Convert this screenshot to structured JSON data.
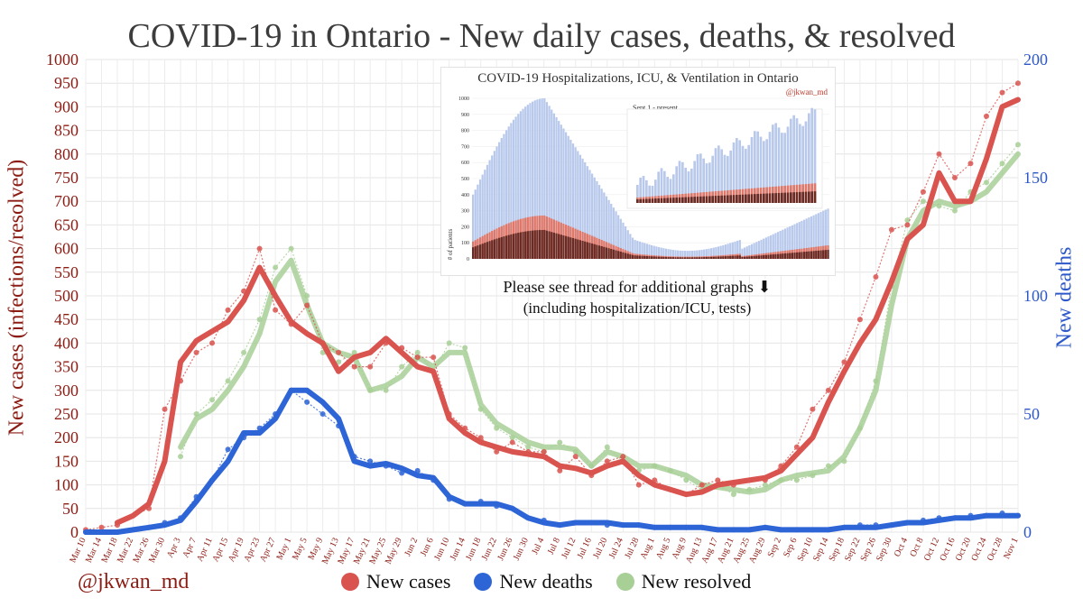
{
  "chart_data": {
    "type": "line",
    "title": "COVID-19 in Ontario - New daily cases, deaths, & resolved",
    "ylabel": "New cases (infections/resolved)",
    "ylabel_right": "New deaths",
    "ylim": [
      0,
      1000
    ],
    "ylim_right": [
      0,
      200
    ],
    "grid": true,
    "legend_position": "bottom",
    "credit": "@jkwan_md",
    "yticks": [
      0,
      50,
      100,
      150,
      200,
      250,
      300,
      350,
      400,
      450,
      500,
      550,
      600,
      650,
      700,
      750,
      800,
      850,
      900,
      950,
      1000
    ],
    "yticks_right": [
      0,
      50,
      100,
      150,
      200
    ],
    "x_tick_labels": [
      "Mar 10",
      "Mar 14",
      "Mar 18",
      "Mar 22",
      "Mar 26",
      "Mar 30",
      "Apr 3",
      "Apr 7",
      "Apr 11",
      "Apr 15",
      "Apr 19",
      "Apr 23",
      "Apr 27",
      "May 1",
      "May 5",
      "May 9",
      "May 13",
      "May 17",
      "May 21",
      "May 25",
      "May 29",
      "Jun 2",
      "Jun 6",
      "Jun 10",
      "Jun 14",
      "Jun 18",
      "Jun 22",
      "Jun 26",
      "Jun 30",
      "Jul 4",
      "Jul 8",
      "Jul 12",
      "Jul 16",
      "Jul 20",
      "Jul 24",
      "Jul 28",
      "Aug 1",
      "Aug 5",
      "Aug 9",
      "Aug 13",
      "Aug 17",
      "Aug 21",
      "Aug 25",
      "Aug 29",
      "Sep 2",
      "Sep 6",
      "Sep 10",
      "Sep 14",
      "Sep 18",
      "Sep 22",
      "Sep 26",
      "Sep 30",
      "Oct 4",
      "Oct 8",
      "Oct 12",
      "Oct 16",
      "Oct 20",
      "Oct 24",
      "Oct 28",
      "Nov 1"
    ],
    "series": [
      {
        "name": "New cases",
        "color": "#d9534f",
        "axis": "left",
        "style": "7-day average line with daily points",
        "x": [
          "Mar 10",
          "Mar 14",
          "Mar 18",
          "Mar 22",
          "Mar 26",
          "Mar 30",
          "Apr 3",
          "Apr 7",
          "Apr 11",
          "Apr 15",
          "Apr 19",
          "Apr 23",
          "Apr 27",
          "May 1",
          "May 5",
          "May 9",
          "May 13",
          "May 17",
          "May 21",
          "May 25",
          "May 29",
          "Jun 2",
          "Jun 6",
          "Jun 10",
          "Jun 14",
          "Jun 18",
          "Jun 22",
          "Jun 26",
          "Jun 30",
          "Jul 4",
          "Jul 8",
          "Jul 12",
          "Jul 16",
          "Jul 20",
          "Jul 24",
          "Jul 28",
          "Aug 1",
          "Aug 5",
          "Aug 9",
          "Aug 13",
          "Aug 17",
          "Aug 21",
          "Aug 25",
          "Aug 29",
          "Sep 2",
          "Sep 6",
          "Sep 10",
          "Sep 14",
          "Sep 18",
          "Sep 22",
          "Sep 26",
          "Sep 30",
          "Oct 4",
          "Oct 8",
          "Oct 12",
          "Oct 16",
          "Oct 20",
          "Oct 24",
          "Oct 28",
          "Nov 1"
        ],
        "values": [
          null,
          null,
          20,
          35,
          60,
          150,
          360,
          405,
          425,
          445,
          490,
          560,
          500,
          445,
          420,
          400,
          340,
          370,
          380,
          410,
          380,
          350,
          340,
          240,
          210,
          190,
          180,
          170,
          165,
          160,
          140,
          135,
          125,
          140,
          150,
          120,
          100,
          90,
          80,
          85,
          100,
          105,
          110,
          115,
          130,
          165,
          200,
          275,
          340,
          400,
          450,
          530,
          620,
          650,
          760,
          700,
          700,
          790,
          900,
          915
        ],
        "points": [
          5,
          10,
          15,
          35,
          50,
          260,
          320,
          380,
          400,
          470,
          510,
          600,
          470,
          440,
          480,
          400,
          380,
          350,
          350,
          400,
          390,
          370,
          370,
          250,
          220,
          200,
          170,
          190,
          170,
          170,
          130,
          160,
          120,
          150,
          160,
          100,
          110,
          90,
          80,
          100,
          110,
          100,
          110,
          110,
          140,
          180,
          260,
          300,
          360,
          450,
          540,
          640,
          650,
          720,
          800,
          750,
          780,
          880,
          930,
          950
        ]
      },
      {
        "name": "New deaths",
        "color": "#2d64d6",
        "axis": "right",
        "style": "7-day average line with daily points",
        "x": [
          "Mar 10",
          "Mar 14",
          "Mar 18",
          "Mar 22",
          "Mar 26",
          "Mar 30",
          "Apr 3",
          "Apr 7",
          "Apr 11",
          "Apr 15",
          "Apr 19",
          "Apr 23",
          "Apr 27",
          "May 1",
          "May 5",
          "May 9",
          "May 13",
          "May 17",
          "May 21",
          "May 25",
          "May 29",
          "Jun 2",
          "Jun 6",
          "Jun 10",
          "Jun 14",
          "Jun 18",
          "Jun 22",
          "Jun 26",
          "Jun 30",
          "Jul 4",
          "Jul 8",
          "Jul 12",
          "Jul 16",
          "Jul 20",
          "Jul 24",
          "Jul 28",
          "Aug 1",
          "Aug 5",
          "Aug 9",
          "Aug 13",
          "Aug 17",
          "Aug 21",
          "Aug 25",
          "Aug 29",
          "Sep 2",
          "Sep 6",
          "Sep 10",
          "Sep 14",
          "Sep 18",
          "Sep 22",
          "Sep 26",
          "Sep 30",
          "Oct 4",
          "Oct 8",
          "Oct 12",
          "Oct 16",
          "Oct 20",
          "Oct 24",
          "Oct 28",
          "Nov 1"
        ],
        "values": [
          0,
          0,
          0,
          1,
          2,
          3,
          5,
          13,
          22,
          30,
          42,
          42,
          48,
          60,
          60,
          55,
          48,
          30,
          28,
          29,
          27,
          24,
          23,
          15,
          12,
          12,
          12,
          10,
          6,
          4,
          3,
          4,
          4,
          4,
          3,
          3,
          2,
          2,
          2,
          2,
          1,
          1,
          1,
          2,
          1,
          1,
          1,
          1,
          2,
          2,
          2,
          3,
          4,
          4,
          5,
          6,
          6,
          7,
          7,
          7
        ],
        "points": [
          0,
          0,
          0,
          1,
          2,
          4,
          6,
          15,
          22,
          35,
          40,
          44,
          50,
          60,
          55,
          50,
          45,
          32,
          30,
          28,
          25,
          26,
          22,
          14,
          12,
          13,
          11,
          10,
          6,
          5,
          3,
          4,
          4,
          3,
          3,
          3,
          2,
          2,
          2,
          2,
          1,
          1,
          1,
          2,
          1,
          1,
          1,
          1,
          2,
          3,
          3,
          3,
          4,
          5,
          6,
          6,
          7,
          7,
          8,
          7
        ]
      },
      {
        "name": "New resolved",
        "color": "#a8cf96",
        "axis": "left",
        "style": "7-day average line with daily points",
        "x": [
          "Mar 10",
          "Mar 14",
          "Mar 18",
          "Mar 22",
          "Mar 26",
          "Mar 30",
          "Apr 3",
          "Apr 7",
          "Apr 11",
          "Apr 15",
          "Apr 19",
          "Apr 23",
          "Apr 27",
          "May 1",
          "May 5",
          "May 9",
          "May 13",
          "May 17",
          "May 21",
          "May 25",
          "May 29",
          "Jun 2",
          "Jun 6",
          "Jun 10",
          "Jun 14",
          "Jun 18",
          "Jun 22",
          "Jun 26",
          "Jun 30",
          "Jul 4",
          "Jul 8",
          "Jul 12",
          "Jul 16",
          "Jul 20",
          "Jul 24",
          "Jul 28",
          "Aug 1",
          "Aug 5",
          "Aug 9",
          "Aug 13",
          "Aug 17",
          "Aug 21",
          "Aug 25",
          "Aug 29",
          "Sep 2",
          "Sep 6",
          "Sep 10",
          "Sep 14",
          "Sep 18",
          "Sep 22",
          "Sep 26",
          "Sep 30",
          "Oct 4",
          "Oct 8",
          "Oct 12",
          "Oct 16",
          "Oct 20",
          "Oct 24",
          "Oct 28",
          "Nov 1"
        ],
        "values": [
          null,
          null,
          null,
          null,
          null,
          null,
          180,
          240,
          260,
          300,
          350,
          420,
          530,
          575,
          480,
          400,
          380,
          370,
          300,
          310,
          330,
          370,
          350,
          380,
          380,
          270,
          230,
          210,
          190,
          180,
          180,
          175,
          140,
          170,
          160,
          140,
          140,
          130,
          120,
          100,
          95,
          90,
          85,
          90,
          110,
          120,
          125,
          130,
          160,
          220,
          300,
          480,
          620,
          680,
          700,
          690,
          700,
          720,
          760,
          800
        ],
        "points": [
          null,
          null,
          null,
          null,
          null,
          null,
          160,
          250,
          280,
          320,
          380,
          450,
          560,
          600,
          500,
          380,
          360,
          380,
          300,
          300,
          350,
          380,
          340,
          400,
          390,
          260,
          220,
          200,
          180,
          170,
          190,
          170,
          140,
          180,
          150,
          130,
          140,
          130,
          110,
          90,
          100,
          80,
          90,
          100,
          110,
          110,
          120,
          140,
          150,
          220,
          320,
          520,
          660,
          700,
          690,
          680,
          720,
          740,
          780,
          820
        ]
      }
    ],
    "inset": {
      "title": "COVID-19 Hospitalizations, ICU, & Ventilation in Ontario",
      "credit": "@jkwan_md",
      "subtitle": "Sept 1 - present",
      "ylabel": "# of patients",
      "ylim": [
        0,
        1000
      ],
      "yticks": [
        0,
        100,
        200,
        300,
        400,
        500,
        600,
        700,
        800,
        900,
        1000
      ],
      "note_line1": "Please see thread for additional graphs ⬇",
      "note_line2": "(including hospitalization/ICU, tests)"
    }
  }
}
